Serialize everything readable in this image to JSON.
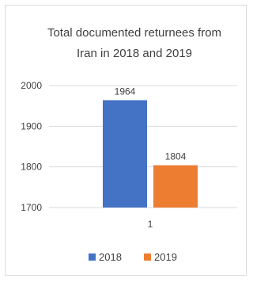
{
  "chart_data": {
    "type": "bar",
    "title_lines": [
      "Total documented returnees from",
      "Iran in 2018 and 2019"
    ],
    "categories": [
      "1"
    ],
    "series": [
      {
        "name": "2018",
        "values": [
          1964
        ],
        "color": "#4472C4"
      },
      {
        "name": "2019",
        "values": [
          1804
        ],
        "color": "#ED7D31"
      }
    ],
    "data_labels": [
      "1964",
      "1804"
    ],
    "ylim": [
      1700,
      2000
    ],
    "yticks": [
      1700,
      1800,
      1900,
      2000
    ],
    "ytick_labels": [
      "1700",
      "1800",
      "1900",
      "2000"
    ],
    "grid": true,
    "legend_position": "bottom"
  }
}
